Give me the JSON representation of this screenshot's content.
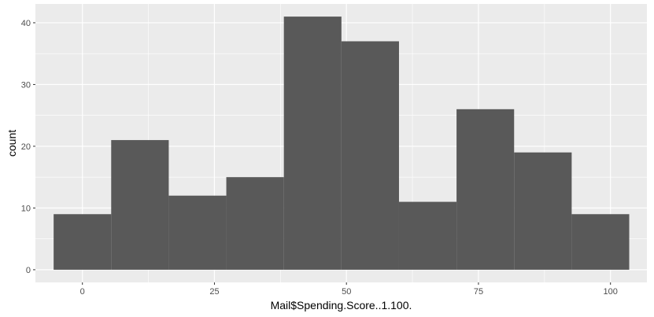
{
  "chart_data": {
    "type": "bar",
    "subtype": "histogram",
    "title": "",
    "xlabel": "Mail$Spending.Score..1.100.",
    "ylabel": "count",
    "xlim": [
      -8.9,
      106.9
    ],
    "ylim": [
      -2.05,
      43.05
    ],
    "x_ticks": [
      0,
      25,
      50,
      75,
      100
    ],
    "y_ticks": [
      0,
      10,
      20,
      30,
      40
    ],
    "bins": [
      {
        "start": -5.45,
        "end": 5.45,
        "count": 9
      },
      {
        "start": 5.45,
        "end": 16.35,
        "count": 21
      },
      {
        "start": 16.35,
        "end": 27.25,
        "count": 12
      },
      {
        "start": 27.25,
        "end": 38.15,
        "count": 15
      },
      {
        "start": 38.15,
        "end": 49.05,
        "count": 41
      },
      {
        "start": 49.05,
        "end": 59.95,
        "count": 37
      },
      {
        "start": 59.95,
        "end": 70.85,
        "count": 11
      },
      {
        "start": 70.85,
        "end": 81.75,
        "count": 26
      },
      {
        "start": 81.75,
        "end": 92.65,
        "count": 19
      },
      {
        "start": 92.65,
        "end": 103.55,
        "count": 9
      }
    ],
    "grid": true,
    "legend": "none",
    "colors": {
      "panel_background": "#ebebeb",
      "grid": "#ffffff",
      "bar_fill": "#595959"
    }
  }
}
